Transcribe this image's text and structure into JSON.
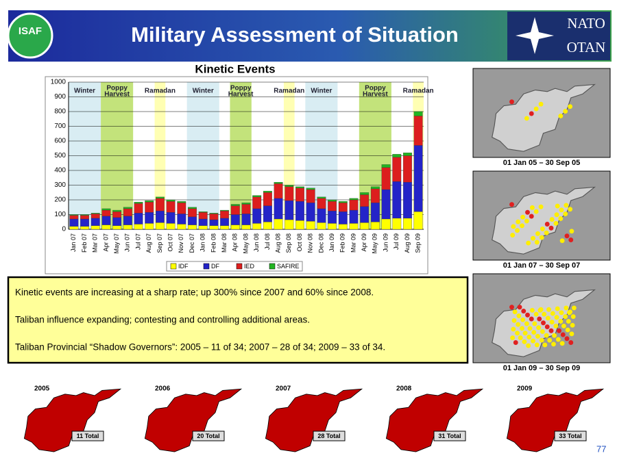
{
  "header": {
    "title": "Military Assessment of Situation",
    "logo_text": "ISAF",
    "nato": "NATO",
    "otan": "OTAN"
  },
  "chart_data": {
    "type": "stacked_bar",
    "title": "Kinetic Events",
    "categories": [
      "Jan 07",
      "Feb 07",
      "Mar 07",
      "Apr 07",
      "May 07",
      "Jun 07",
      "Jul 07",
      "Aug 07",
      "Sep 07",
      "Oct 07",
      "Nov 07",
      "Dec 07",
      "Jan 08",
      "Feb 08",
      "Mar 08",
      "Apr 08",
      "May 08",
      "Jun 08",
      "Jul 08",
      "Aug 08",
      "Sep 08",
      "Oct 08",
      "Nov 08",
      "Dec 08",
      "Jan 09",
      "Feb 09",
      "Mar 09",
      "Apr 09",
      "May 09",
      "Jun 09",
      "Jul 09",
      "Aug 09",
      "Sep 09"
    ],
    "series": [
      {
        "name": "IDF",
        "color": "#ffff00",
        "values": [
          20,
          20,
          25,
          30,
          25,
          30,
          35,
          40,
          45,
          40,
          35,
          30,
          25,
          25,
          25,
          30,
          30,
          40,
          50,
          70,
          65,
          60,
          55,
          45,
          40,
          35,
          40,
          45,
          50,
          70,
          75,
          75,
          120
        ]
      },
      {
        "name": "DF",
        "color": "#2424c8",
        "values": [
          50,
          50,
          50,
          60,
          55,
          60,
          75,
          75,
          80,
          75,
          70,
          55,
          45,
          40,
          50,
          70,
          75,
          100,
          110,
          140,
          130,
          130,
          125,
          95,
          85,
          85,
          90,
          110,
          130,
          200,
          250,
          245,
          450
        ]
      },
      {
        "name": "IED",
        "color": "#dc1e1e",
        "values": [
          25,
          25,
          30,
          40,
          40,
          50,
          65,
          70,
          85,
          75,
          75,
          55,
          45,
          40,
          50,
          60,
          65,
          80,
          90,
          100,
          95,
          90,
          90,
          70,
          65,
          60,
          70,
          80,
          95,
          150,
          165,
          180,
          200
        ]
      },
      {
        "name": "SAFIRE",
        "color": "#22b422",
        "values": [
          5,
          5,
          5,
          10,
          10,
          10,
          10,
          10,
          10,
          10,
          10,
          10,
          5,
          5,
          5,
          10,
          10,
          10,
          10,
          10,
          10,
          10,
          10,
          10,
          10,
          10,
          10,
          15,
          15,
          20,
          20,
          20,
          30
        ]
      }
    ],
    "ylim": [
      0,
      1000
    ],
    "yticks": [
      0,
      100,
      200,
      300,
      400,
      500,
      600,
      700,
      800,
      900,
      1000
    ],
    "grid": true,
    "periods": [
      {
        "label": [
          "Winter"
        ],
        "start": "Jan 07",
        "end": "Mar 07",
        "color": "#cfe8f0"
      },
      {
        "label": [
          "Poppy",
          "Harvest"
        ],
        "start": "Apr 07",
        "end": "Jun 07",
        "color": "#b4dc5a"
      },
      {
        "label": [
          "Ramadan"
        ],
        "start": "Sep 07",
        "end": "Sep 07",
        "color": "#ffffa0"
      },
      {
        "label": [
          "Winter"
        ],
        "start": "Dec 07",
        "end": "Feb 08",
        "color": "#cfe8f0"
      },
      {
        "label": [
          "Poppy",
          "Harvest"
        ],
        "start": "Apr 08",
        "end": "May 08",
        "color": "#b4dc5a"
      },
      {
        "label": [
          "Ramadan"
        ],
        "start": "Sep 08",
        "end": "Sep 08",
        "color": "#ffffa0"
      },
      {
        "label": [
          "Winter"
        ],
        "start": "Nov 08",
        "end": "Jan 09",
        "color": "#cfe8f0"
      },
      {
        "label": [
          "Poppy",
          "Harvest"
        ],
        "start": "Apr 09",
        "end": "Jun 09",
        "color": "#b4dc5a"
      },
      {
        "label": [
          "Ramadan"
        ],
        "start": "Sep 09",
        "end": "Sep 09",
        "color": "#ffffa0"
      }
    ]
  },
  "bullets": [
    "Kinetic events are increasing at a sharp rate; up 300% since 2007 and 60% since 2008.",
    "Taliban influence expanding; contesting and controlling additional areas.",
    "Taliban Provincial “Shadow Governors”:  2005 – 11 of 34;  2007 – 28 of 34;  2009 – 33 of 34."
  ],
  "maps": [
    "01 Jan 05 – 30 Sep 05",
    "01 Jan 07 – 30 Sep 07",
    "01 Jan 09 – 30 Sep 09"
  ],
  "governors": [
    {
      "year": "2005",
      "total": "11 Total"
    },
    {
      "year": "2006",
      "total": "20 Total"
    },
    {
      "year": "2007",
      "total": "28 Total"
    },
    {
      "year": "2008",
      "total": "31 Total"
    },
    {
      "year": "2009",
      "total": "33 Total"
    }
  ],
  "page_number": "77"
}
